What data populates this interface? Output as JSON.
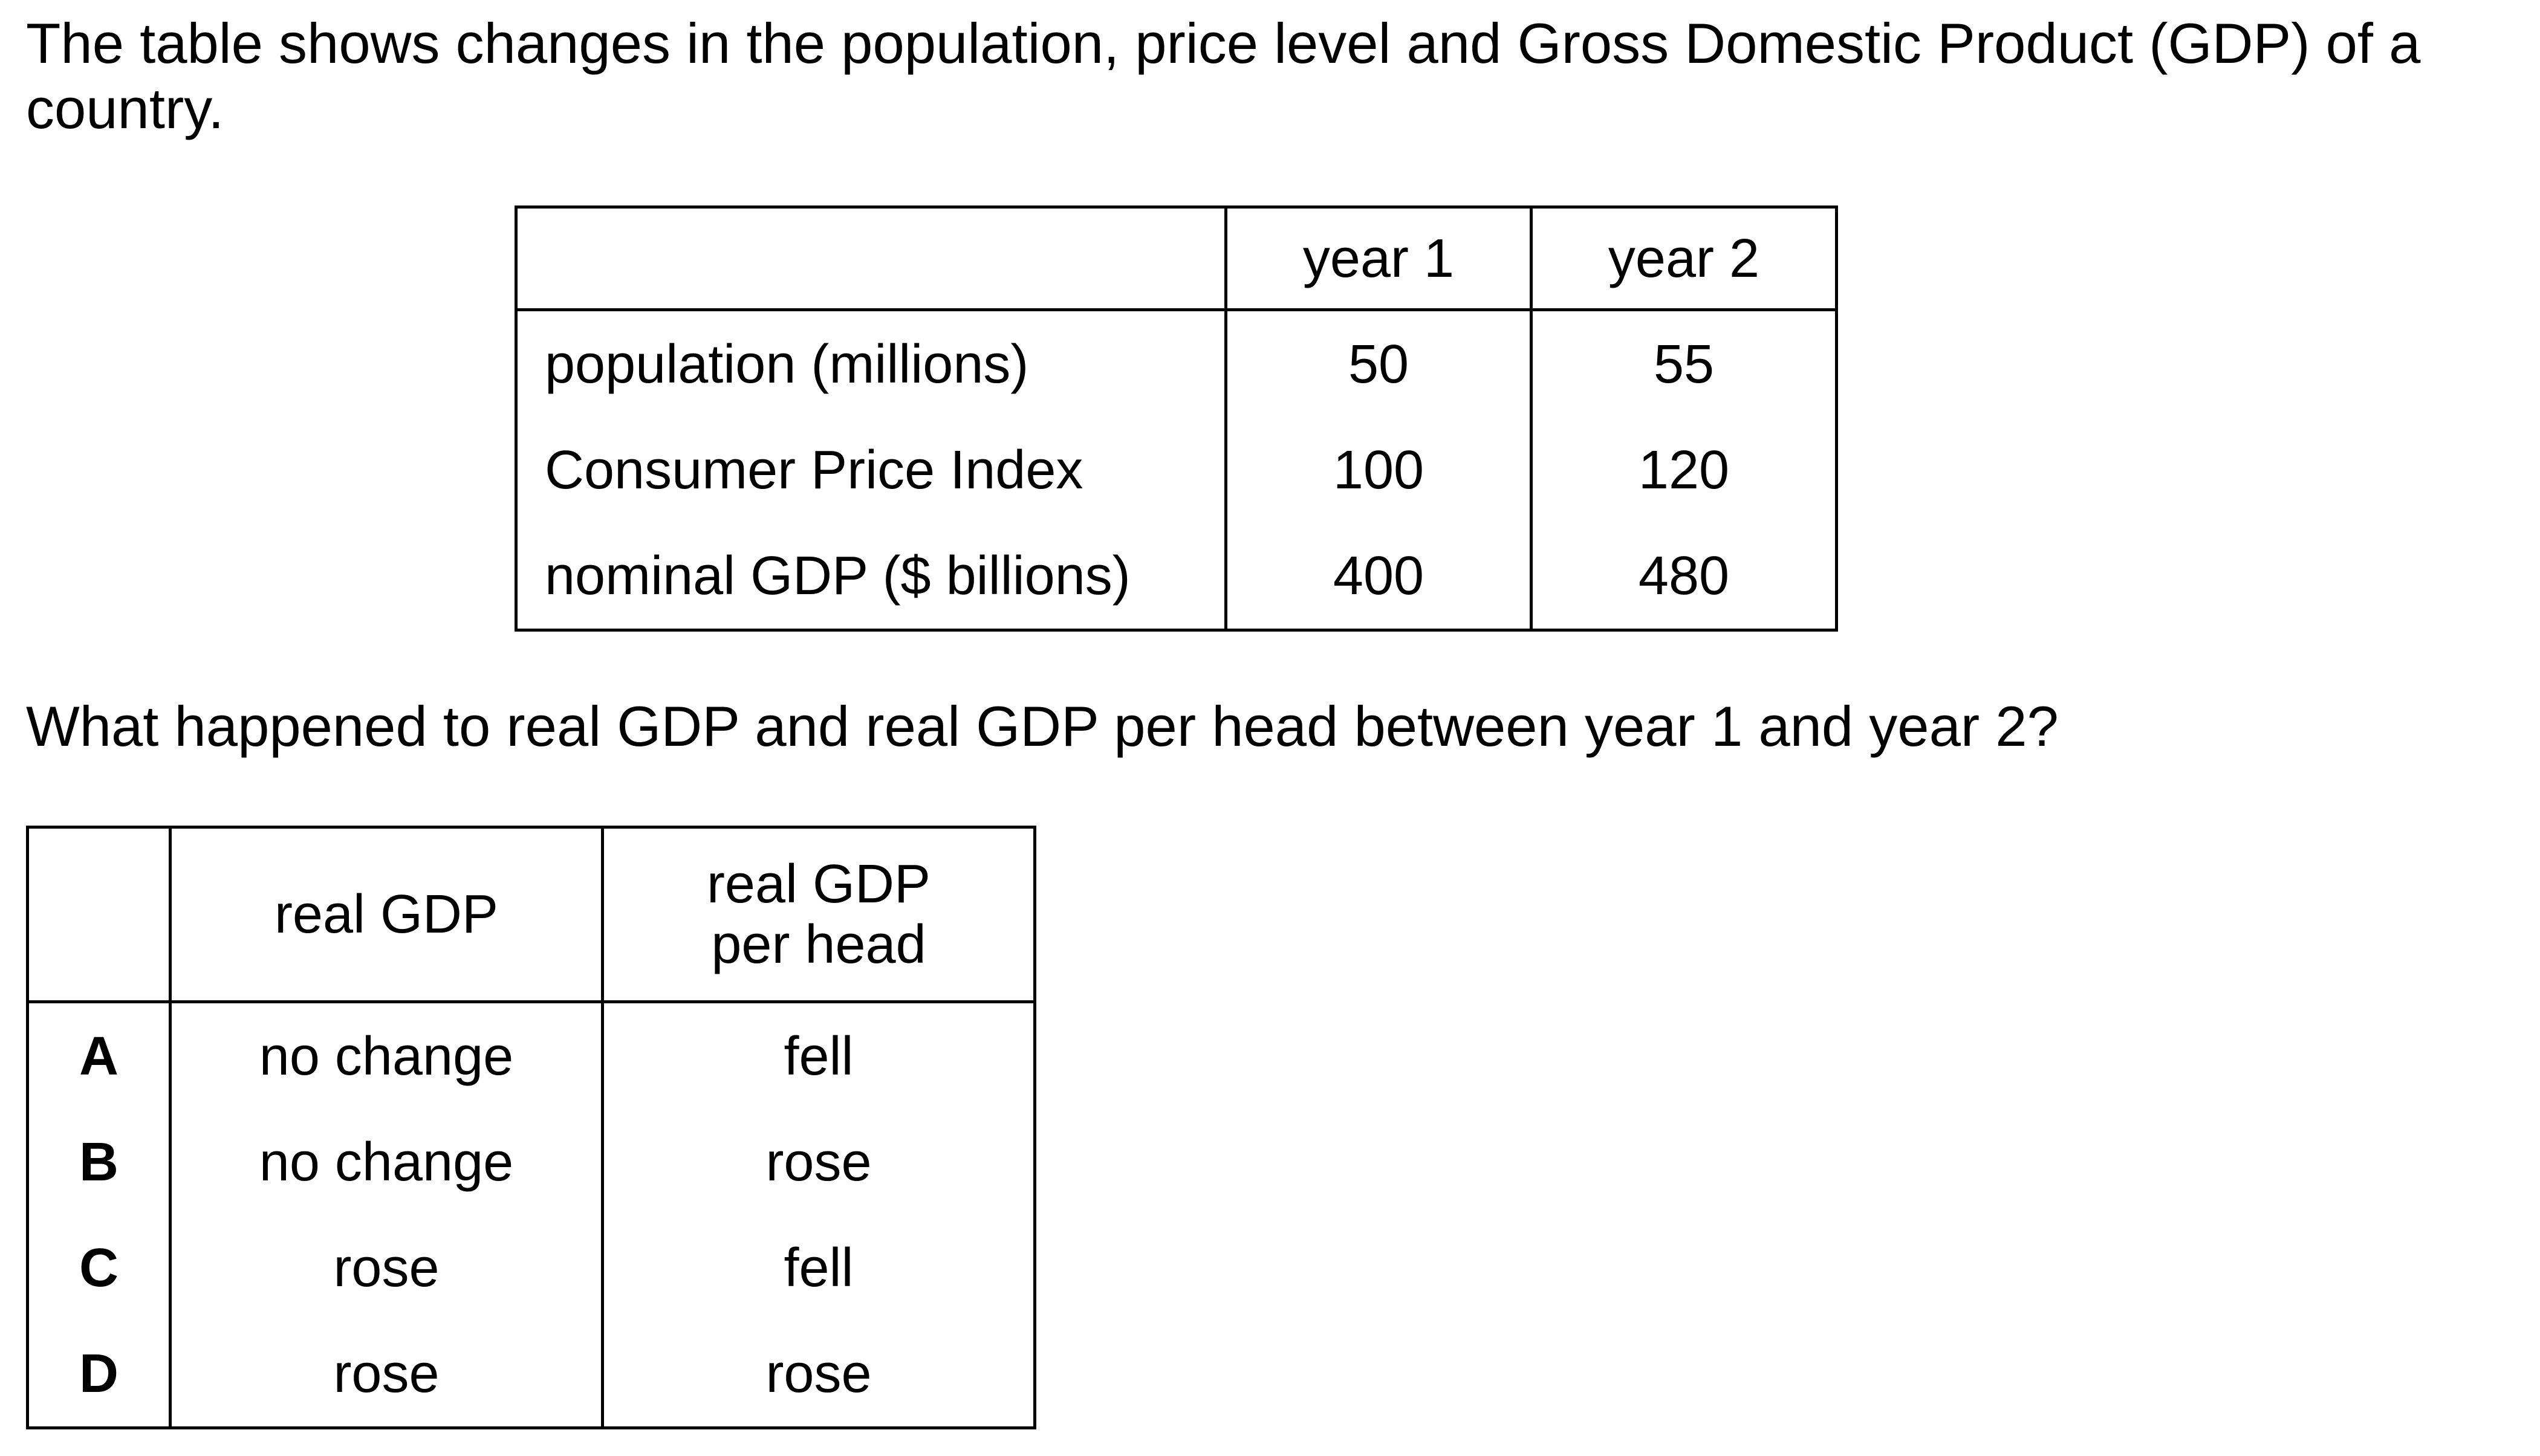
{
  "intro_text": "The table shows changes in the population, price level and Gross Domestic Product (GDP) of a country.",
  "data_table": {
    "headers": [
      "",
      "year 1",
      "year 2"
    ],
    "rows": [
      {
        "label": "population (millions)",
        "year1": "50",
        "year2": "55"
      },
      {
        "label": "Consumer Price Index",
        "year1": "100",
        "year2": "120"
      },
      {
        "label": "nominal GDP ($ billions)",
        "year1": "400",
        "year2": "480"
      }
    ]
  },
  "question_text": "What happened to real GDP and real GDP per head between year 1 and year 2?",
  "options_table": {
    "headers": {
      "col1": "",
      "col2": "real GDP",
      "col3_line1": "real GDP",
      "col3_line2": "per head"
    },
    "rows": [
      {
        "letter": "A",
        "real_gdp": "no change",
        "per_head": "fell"
      },
      {
        "letter": "B",
        "real_gdp": "no change",
        "per_head": "rose"
      },
      {
        "letter": "C",
        "real_gdp": "rose",
        "per_head": "fell"
      },
      {
        "letter": "D",
        "real_gdp": "rose",
        "per_head": "rose"
      }
    ]
  }
}
